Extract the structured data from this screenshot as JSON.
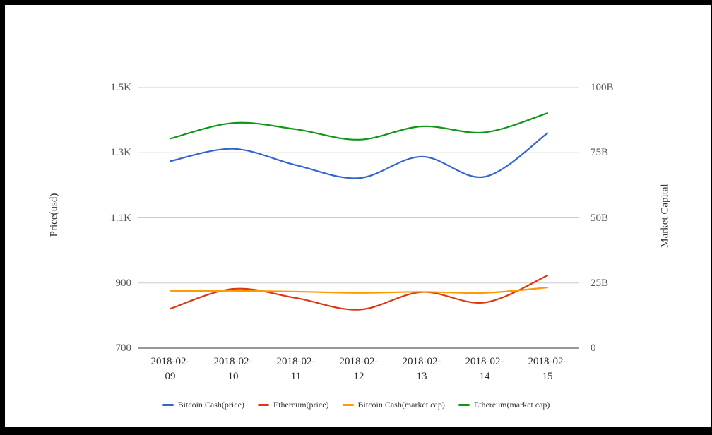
{
  "page": {
    "background": "#ffffff",
    "frame_color": "#000000"
  },
  "chart_data": {
    "type": "line",
    "smooth": true,
    "grid": true,
    "categories": [
      "2018-02-09",
      "2018-02-10",
      "2018-02-11",
      "2018-02-12",
      "2018-02-13",
      "2018-02-14",
      "2018-02-15"
    ],
    "series": [
      {
        "name": "Bitcoin Cash(price)",
        "color": "#3366cc",
        "axis": "left",
        "values": [
          1274,
          1312,
          1262,
          1222,
          1288,
          1226,
          1360
        ]
      },
      {
        "name": "Ethereum(price)",
        "color": "#dc3912",
        "axis": "left",
        "values": [
          821,
          882,
          854,
          818,
          872,
          840,
          923
        ]
      },
      {
        "name": "Bitcoin Cash(market cap)",
        "color": "#ff9900",
        "axis": "right",
        "values": [
          21.9,
          22.0,
          21.7,
          21.2,
          21.6,
          21.2,
          23.3
        ]
      },
      {
        "name": "Ethereum(market cap)",
        "color": "#109618",
        "axis": "right",
        "values": [
          80.4,
          86.4,
          84.0,
          80.0,
          85.1,
          82.8,
          90.2
        ]
      }
    ],
    "left_axis": {
      "label": "Price(usd)",
      "ticks": [
        "1.5K",
        "1.3K",
        "1.1K",
        "900",
        "700"
      ],
      "min": 700,
      "max": 1500
    },
    "right_axis": {
      "label": "Market Capital",
      "ticks": [
        "100B",
        "75B",
        "50B",
        "25B",
        "0"
      ],
      "min": 0,
      "max": 100,
      "unit": "B"
    },
    "legend": {
      "position": "bottom",
      "items": [
        "Bitcoin Cash(price)",
        "Ethereum(price)",
        "Bitcoin Cash(market cap)",
        "Ethereum(market cap)"
      ]
    },
    "style": {
      "grid_color": "#cccccc",
      "axis_line_color": "#333333",
      "tick_text_color": "#565656",
      "date_text_color": "#2b2b2b"
    }
  }
}
